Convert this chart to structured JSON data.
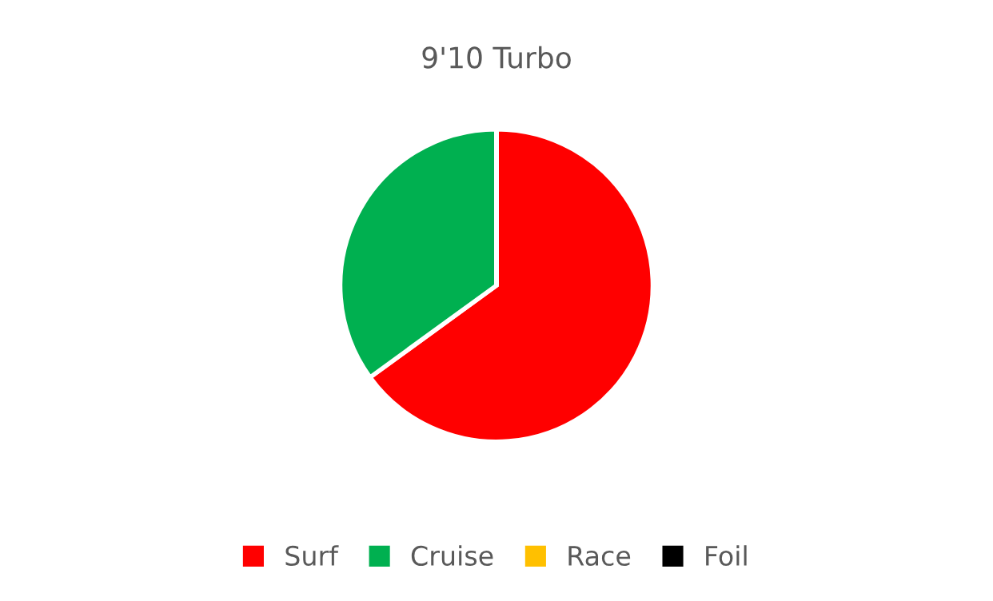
{
  "chart_data": {
    "type": "pie",
    "title": "9'10 Turbo",
    "categories": [
      "Surf",
      "Cruise",
      "Race",
      "Foil"
    ],
    "values": [
      65,
      35,
      0,
      0
    ],
    "colors": [
      "#ff0000",
      "#00b050",
      "#ffc000",
      "#000000"
    ],
    "legend": "bottom"
  }
}
